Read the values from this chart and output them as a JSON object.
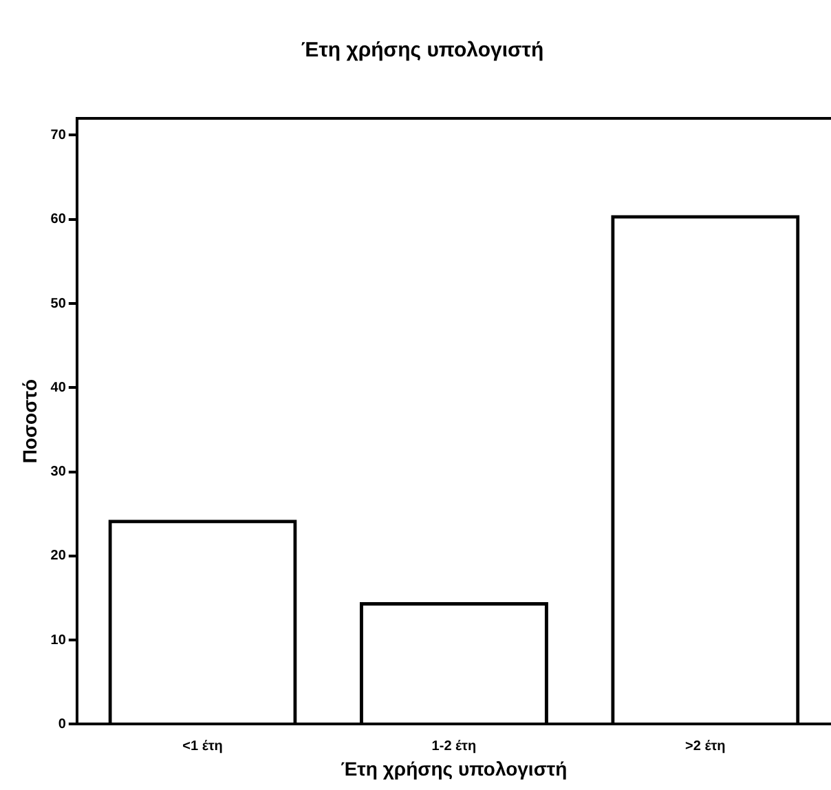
{
  "chart_data": {
    "type": "bar",
    "title": "Έτη χρήσης υπολογιστή",
    "xlabel": "Έτη χρήσης υπολογιστή",
    "ylabel": "Ποσοστό",
    "categories": [
      "<1 έτη",
      "1-2 έτη",
      ">2 έτη"
    ],
    "values": [
      24.3,
      14.5,
      60.5
    ],
    "color": "#000000",
    "ylim": [
      0,
      72
    ],
    "yticks": [
      0,
      10,
      20,
      30,
      40,
      50,
      60,
      70
    ],
    "grid": false,
    "legend": false
  }
}
